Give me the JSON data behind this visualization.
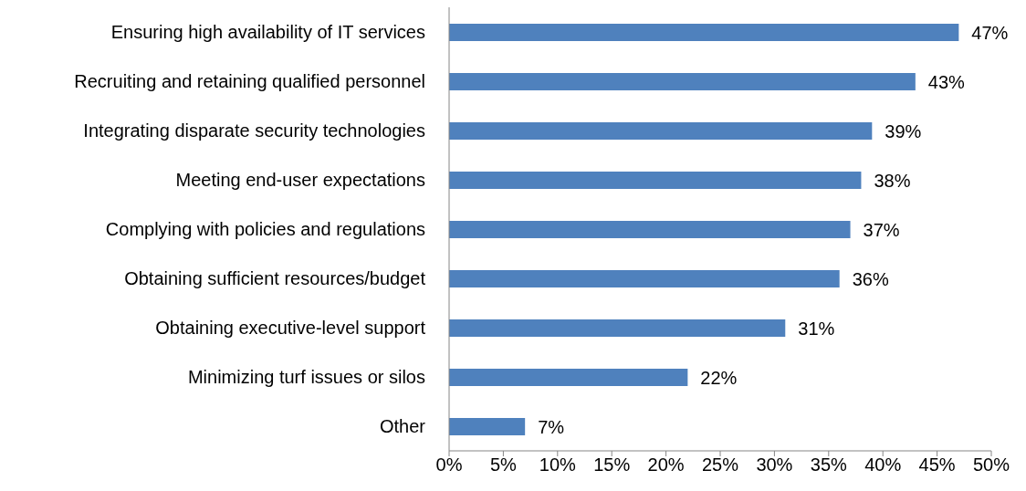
{
  "chart_data": {
    "type": "bar",
    "orientation": "horizontal",
    "categories": [
      "Ensuring high availability of IT services",
      "Recruiting and retaining qualified personnel",
      "Integrating disparate security technologies",
      "Meeting end-user expectations",
      "Complying with policies and regulations",
      "Obtaining sufficient resources/budget",
      "Obtaining executive-level support",
      "Minimizing turf issues or silos",
      "Other"
    ],
    "values": [
      47,
      43,
      39,
      38,
      37,
      36,
      31,
      22,
      7
    ],
    "value_labels": [
      "47%",
      "43%",
      "39%",
      "38%",
      "37%",
      "36%",
      "31%",
      "22%",
      "7%"
    ],
    "color": "#4f81bd",
    "xlim": [
      0,
      50
    ],
    "xticks": [
      {
        "value": 0,
        "label": "0%"
      },
      {
        "value": 5,
        "label": "5%"
      },
      {
        "value": 10,
        "label": "10%"
      },
      {
        "value": 15,
        "label": "15%"
      },
      {
        "value": 20,
        "label": "20%"
      },
      {
        "value": 25,
        "label": "25%"
      },
      {
        "value": 30,
        "label": "30%"
      },
      {
        "value": 35,
        "label": "35%"
      },
      {
        "value": 40,
        "label": "40%"
      },
      {
        "value": 45,
        "label": "45%"
      },
      {
        "value": 50,
        "label": "50%"
      }
    ],
    "grid": false,
    "legend": false
  }
}
